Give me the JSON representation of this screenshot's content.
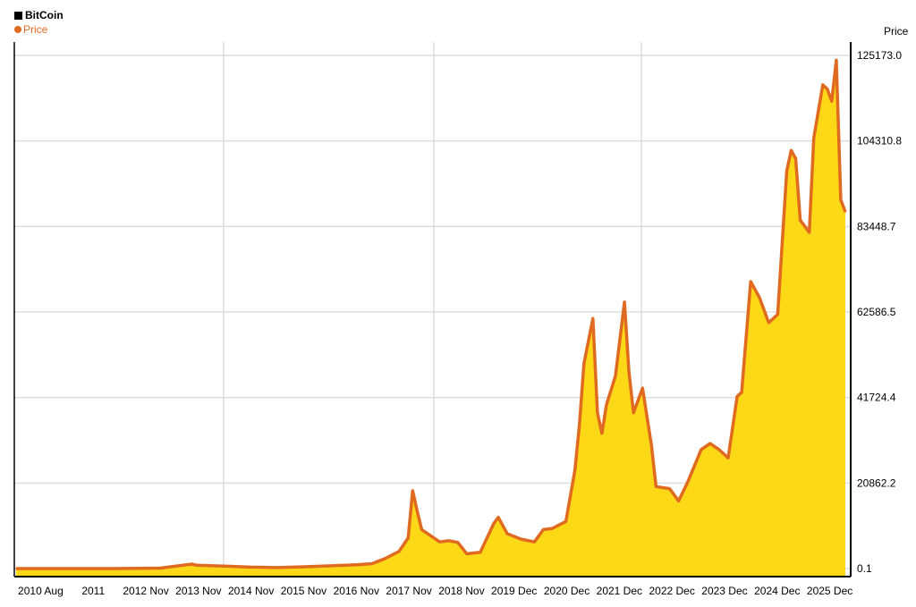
{
  "colors": {
    "background": "#ffffff",
    "grid": "#dddddd",
    "axis": "#000000",
    "line": "#e06a1f",
    "fill": "#fdd816",
    "legend_square": "#000000"
  },
  "legend": {
    "title": "BitCoin",
    "series": "Price"
  },
  "axis": {
    "y_title": "Price"
  },
  "chart_data": {
    "type": "area",
    "title": "BitCoin",
    "xlabel": "",
    "ylabel": "Price",
    "x_tick_labels": [
      "2010 Aug",
      "2011",
      "2012 Nov",
      "2013 Nov",
      "2014 Nov",
      "2015 Nov",
      "2016 Nov",
      "2017 Nov",
      "2018 Nov",
      "2019 Dec",
      "2020 Dec",
      "2021 Dec",
      "2022 Dec",
      "2023 Dec",
      "2024 Dec",
      "2025 Dec"
    ],
    "y_tick_labels": [
      "125173.0",
      "104310.8",
      "83448.7",
      "62586.5",
      "41724.4",
      "20862.2",
      "0.1"
    ],
    "y_ticks": [
      125173.0,
      104310.8,
      83448.7,
      62586.5,
      41724.4,
      20862.2,
      0.1
    ],
    "x_range": [
      "2010-08",
      "2026-01"
    ],
    "ylim": [
      0.1,
      125173.0
    ],
    "grid": true,
    "legend_position": "top-left",
    "series": [
      {
        "name": "Price",
        "x": [
          "2010-08",
          "2011-06",
          "2012-06",
          "2013-04",
          "2013-11",
          "2013-12",
          "2014-06",
          "2014-12",
          "2015-06",
          "2015-12",
          "2016-06",
          "2016-12",
          "2017-03",
          "2017-06",
          "2017-09",
          "2017-11",
          "2017-12",
          "2018-01",
          "2018-02",
          "2018-04",
          "2018-06",
          "2018-08",
          "2018-10",
          "2018-12",
          "2019-03",
          "2019-06",
          "2019-07",
          "2019-09",
          "2019-12",
          "2020-03",
          "2020-05",
          "2020-07",
          "2020-10",
          "2020-12",
          "2021-01",
          "2021-02",
          "2021-04",
          "2021-05",
          "2021-06",
          "2021-07",
          "2021-09",
          "2021-11",
          "2021-12",
          "2022-01",
          "2022-03",
          "2022-05",
          "2022-06",
          "2022-09",
          "2022-11",
          "2023-01",
          "2023-04",
          "2023-06",
          "2023-08",
          "2023-10",
          "2023-12",
          "2024-01",
          "2024-03",
          "2024-05",
          "2024-07",
          "2024-09",
          "2024-11",
          "2024-12",
          "2025-01",
          "2025-02",
          "2025-04",
          "2025-05",
          "2025-07",
          "2025-08",
          "2025-09",
          "2025-10",
          "2025-11",
          "2025-12"
        ],
        "values": [
          0.1,
          10,
          6,
          100,
          1100,
          800,
          600,
          350,
          250,
          430,
          670,
          950,
          1200,
          2500,
          4200,
          7500,
          19000,
          14000,
          9500,
          8000,
          6500,
          6800,
          6400,
          3600,
          4000,
          11000,
          12500,
          8500,
          7200,
          6500,
          9500,
          9800,
          11500,
          24000,
          35000,
          50000,
          61000,
          38000,
          33000,
          40000,
          47000,
          65000,
          48000,
          38000,
          44000,
          30000,
          20000,
          19500,
          16500,
          21000,
          29000,
          30500,
          29000,
          27000,
          42000,
          43000,
          70000,
          66000,
          60000,
          62000,
          97000,
          102000,
          100000,
          85000,
          82000,
          105000,
          118000,
          117000,
          114000,
          124000,
          90000,
          87000
        ]
      }
    ]
  }
}
